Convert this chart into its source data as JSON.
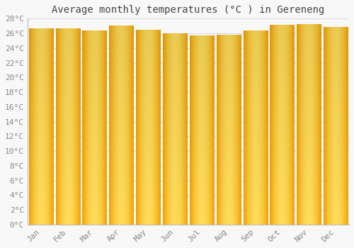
{
  "title": "Average monthly temperatures (°C ) in Gereneng",
  "months": [
    "Jan",
    "Feb",
    "Mar",
    "Apr",
    "May",
    "Jun",
    "Jul",
    "Aug",
    "Sep",
    "Oct",
    "Nov",
    "Dec"
  ],
  "values": [
    26.6,
    26.6,
    26.4,
    27.0,
    26.5,
    26.0,
    25.7,
    25.8,
    26.4,
    27.1,
    27.2,
    26.8
  ],
  "bar_color_center": "#FFD966",
  "bar_color_edge": "#F0A000",
  "bar_color_bottom": "#FFB800",
  "background_color": "#F8F8F8",
  "grid_color": "#DDDDDD",
  "ylim": [
    0,
    28
  ],
  "yticks": [
    0,
    2,
    4,
    6,
    8,
    10,
    12,
    14,
    16,
    18,
    20,
    22,
    24,
    26,
    28
  ],
  "title_fontsize": 10,
  "tick_fontsize": 8,
  "title_color": "#444444",
  "tick_color": "#888888",
  "font_family": "monospace",
  "bar_width": 0.9
}
